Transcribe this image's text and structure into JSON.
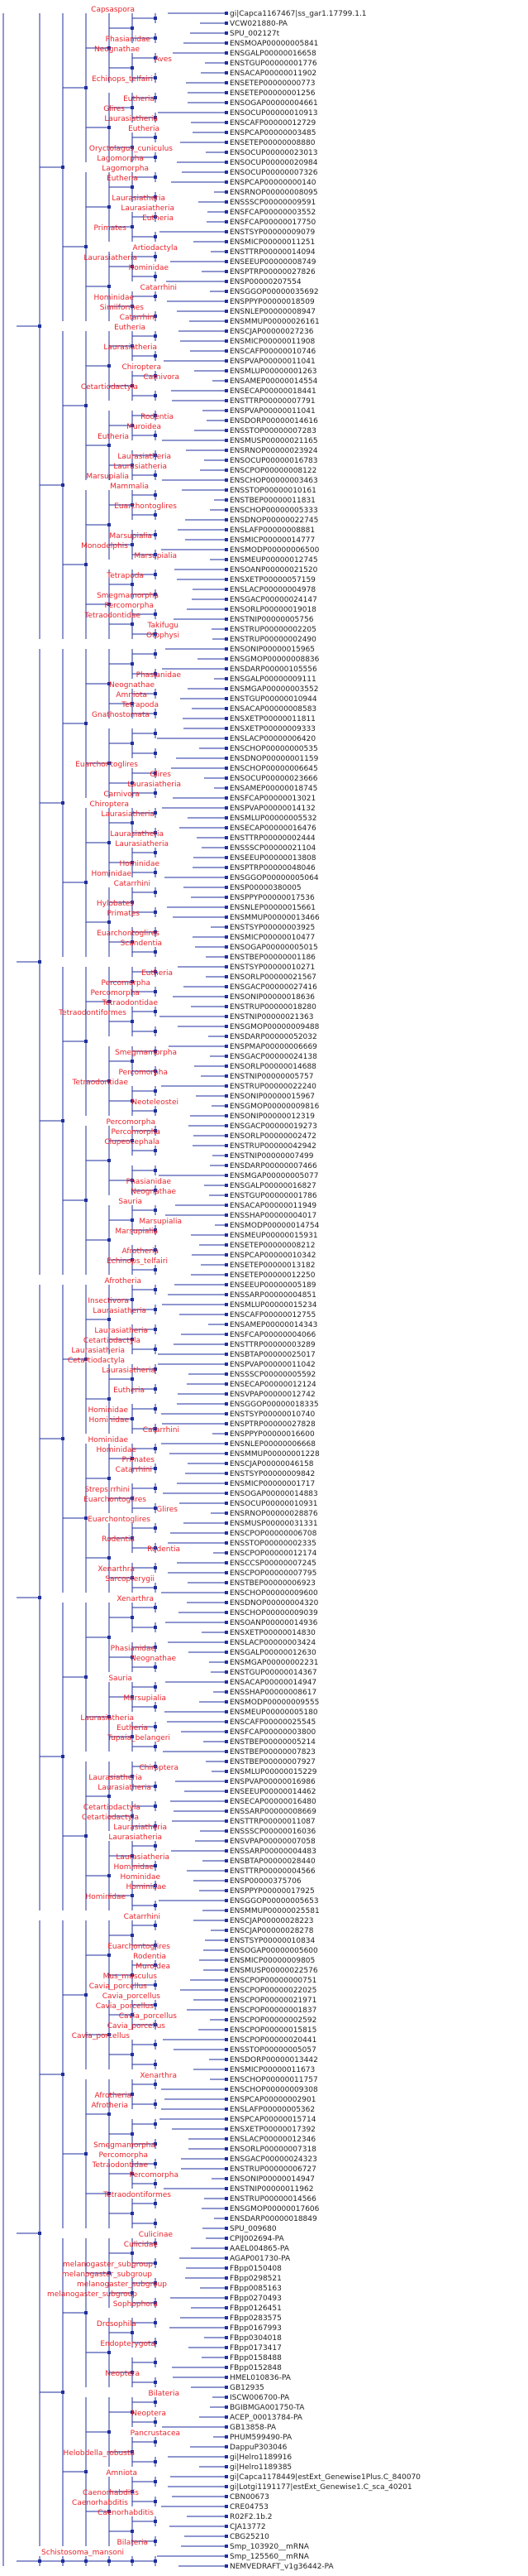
{
  "colors": {
    "branch": "#1f2f9f",
    "clade": "#e8232a",
    "leaf": "#222222"
  },
  "leaves": [
    {
      "label": "gi|Capca1167467|ss_gar1.17799.1.1",
      "clade": "Capsaspora"
    },
    {
      "label": "VCW021880-PA",
      "clade": ""
    },
    {
      "label": "SPU_002127t",
      "clade": ""
    },
    {
      "label": "ENSMOAP00000005841",
      "clade": "Phasianidae"
    },
    {
      "label": "ENSGALP00000016658",
      "clade": "Neognathae"
    },
    {
      "label": "ENSTGUP00000001776",
      "clade": "Aves"
    },
    {
      "label": "ENSACAP00000011902",
      "clade": ""
    },
    {
      "label": "ENSETEP00000000773",
      "clade": "Echinops_telfairi"
    },
    {
      "label": "ENSETEP00000001256",
      "clade": ""
    },
    {
      "label": "ENSOGAP00000004661",
      "clade": "Eutheria"
    },
    {
      "label": "ENSOCUP00000010913",
      "clade": "Glires"
    },
    {
      "label": "ENSCAFP00000012729",
      "clade": "Laurasiatheria"
    },
    {
      "label": "ENSPCAP00000003485",
      "clade": "Eutheria"
    },
    {
      "label": "ENSETEP00000008880",
      "clade": ""
    },
    {
      "label": "ENSOCUP00000023013",
      "clade": "Oryctolagus_cuniculus"
    },
    {
      "label": "ENSOCUP00000020984",
      "clade": "Lagomorpha"
    },
    {
      "label": "ENSOCUP00000007326",
      "clade": "Lagomorpha"
    },
    {
      "label": "ENSPCAP00000000140",
      "clade": "Eutheria"
    },
    {
      "label": "ENSRNOP00000008095",
      "clade": ""
    },
    {
      "label": "ENSSSCP00000009591",
      "clade": "Laurasiatheria"
    },
    {
      "label": "ENSFCAP00000003552",
      "clade": "Laurasiatheria"
    },
    {
      "label": "ENSFCAP00000017750",
      "clade": "Eutheria"
    },
    {
      "label": "ENSTSYP00000009079",
      "clade": "Primates"
    },
    {
      "label": "ENSMICP00000011251",
      "clade": ""
    },
    {
      "label": "ENSTTRP00000014094",
      "clade": "Artiodactyla"
    },
    {
      "label": "ENSEEUP00000008749",
      "clade": "Laurasiatheria"
    },
    {
      "label": "ENSPTRP00000027826",
      "clade": "Hominidae"
    },
    {
      "label": "ENSP00000207554",
      "clade": ""
    },
    {
      "label": "ENSGGOP00000035692",
      "clade": "Catarrhini"
    },
    {
      "label": "ENSPPYP00000018509",
      "clade": "Hominidae"
    },
    {
      "label": "ENSNLEP00000008947",
      "clade": "Simiiformes"
    },
    {
      "label": "ENSMMUP00000026161",
      "clade": "Catarrhini"
    },
    {
      "label": "ENSCJAP00000027236",
      "clade": "Eutheria"
    },
    {
      "label": "ENSMICP00000011908",
      "clade": ""
    },
    {
      "label": "ENSCAFP00000010746",
      "clade": "Laurasiatheria"
    },
    {
      "label": "ENSPVAP00000011041",
      "clade": ""
    },
    {
      "label": "ENSMLUP00000001263",
      "clade": "Chiroptera"
    },
    {
      "label": "ENSAMEP00000014554",
      "clade": "Carnivora"
    },
    {
      "label": "ENSECAP00000018441",
      "clade": "Cetartiodactyla"
    },
    {
      "label": "ENSTTRP00000007791",
      "clade": ""
    },
    {
      "label": "ENSPVAP00000011041",
      "clade": ""
    },
    {
      "label": "ENSDORP00000014616",
      "clade": "Rodentia"
    },
    {
      "label": "ENSSTOP00000007283",
      "clade": "Muroidea"
    },
    {
      "label": "ENSMUSP00000021165",
      "clade": "Eutheria"
    },
    {
      "label": "ENSRNOP00000023924",
      "clade": ""
    },
    {
      "label": "ENSOCUP00000016783",
      "clade": "Laurasiatheria"
    },
    {
      "label": "ENSCPOP00000008122",
      "clade": "Laurasiatheria"
    },
    {
      "label": "ENSCHOP00000003463",
      "clade": "Marsupialia"
    },
    {
      "label": "ENSSTOP00000010161",
      "clade": "Mammalia"
    },
    {
      "label": "ENSTBEP00000011831",
      "clade": ""
    },
    {
      "label": "ENSCHOP00000005333",
      "clade": "Euarchontoglires"
    },
    {
      "label": "ENSDNOP00000022745",
      "clade": ""
    },
    {
      "label": "ENSLAFP00000008881",
      "clade": ""
    },
    {
      "label": "ENSMICP00000014777",
      "clade": "Marsupialia"
    },
    {
      "label": "ENSMODP00000006500",
      "clade": "Monodelphis"
    },
    {
      "label": "ENSMEUP00000012745",
      "clade": "Marsupialia"
    },
    {
      "label": "ENSOANP00000021520",
      "clade": ""
    },
    {
      "label": "ENSXETP00000057159",
      "clade": "Tetrapoda"
    },
    {
      "label": "ENSLACP00000004978",
      "clade": ""
    },
    {
      "label": "ENSGACP00000024147",
      "clade": "Smegmamorpha"
    },
    {
      "label": "ENSORLP00000019018",
      "clade": "Percomorpha"
    },
    {
      "label": "ENSTNIP00000005756",
      "clade": "Tetraodontidae"
    },
    {
      "label": "ENSTRUP00000002205",
      "clade": "Takifugu"
    },
    {
      "label": "ENSTRUP00000002490",
      "clade": "Otophysi"
    },
    {
      "label": "ENSONIP00000015965",
      "clade": ""
    },
    {
      "label": "ENSGMOP00000008836",
      "clade": ""
    },
    {
      "label": "ENSDARP00000105556",
      "clade": ""
    },
    {
      "label": "ENSGALP00000009111",
      "clade": "Phasianidae"
    },
    {
      "label": "ENSMGAP00000003552",
      "clade": "Neognathae"
    },
    {
      "label": "ENSTGUP00000010944",
      "clade": "Amniota"
    },
    {
      "label": "ENSACAP00000008583",
      "clade": "Tetrapoda"
    },
    {
      "label": "ENSXETP00000011811",
      "clade": "Gnathostomata"
    },
    {
      "label": "ENSXETP00000009333",
      "clade": ""
    },
    {
      "label": "ENSLACP00000006420",
      "clade": ""
    },
    {
      "label": "ENSCHOP00000000535",
      "clade": ""
    },
    {
      "label": "ENSDNOP00000001159",
      "clade": ""
    },
    {
      "label": "ENSCHOP00000006645",
      "clade": "Euarchontoglires"
    },
    {
      "label": "ENSOCUP00000023666",
      "clade": "Glires"
    },
    {
      "label": "ENSAMEP00000018745",
      "clade": "Laurasiatheria"
    },
    {
      "label": "ENSFCAP00000013021",
      "clade": "Carnivora"
    },
    {
      "label": "ENSPVAP00000014132",
      "clade": "Chiroptera"
    },
    {
      "label": "ENSMLUP00000005532",
      "clade": "Laurasiatheria"
    },
    {
      "label": "ENSECAP00000016476",
      "clade": ""
    },
    {
      "label": "ENSTTRP00000002444",
      "clade": "Laurasiatheria"
    },
    {
      "label": "ENSSSCP00000021104",
      "clade": "Laurasiatheria"
    },
    {
      "label": "ENSEEUP00000013808",
      "clade": ""
    },
    {
      "label": "ENSPTRP00000048046",
      "clade": "Hominidae"
    },
    {
      "label": "ENSGGOP00000005064",
      "clade": "Hominidae"
    },
    {
      "label": "ENSP00000380005",
      "clade": "Catarrhini"
    },
    {
      "label": "ENSPPYP00000017536",
      "clade": ""
    },
    {
      "label": "ENSNLEP00000015661",
      "clade": "Hylobates"
    },
    {
      "label": "ENSMMUP00000013466",
      "clade": "Primates"
    },
    {
      "label": "ENSTSYP00000003925",
      "clade": ""
    },
    {
      "label": "ENSMICP00000010477",
      "clade": "Euarchontoglires"
    },
    {
      "label": "ENSOGAP00000005015",
      "clade": "Scandentia"
    },
    {
      "label": "ENSTBEP00000001186",
      "clade": ""
    },
    {
      "label": "ENSTSYP00000010271",
      "clade": ""
    },
    {
      "label": "ENSORLP00000021567",
      "clade": "Eutheria"
    },
    {
      "label": "ENSGACP00000027416",
      "clade": "Percomorpha"
    },
    {
      "label": "ENSONIP00000018636",
      "clade": "Percomorpha"
    },
    {
      "label": "ENSTRUP00000018280",
      "clade": "Tetraodontidae"
    },
    {
      "label": "ENSTNIP00000021363",
      "clade": "Tetraodontiformes"
    },
    {
      "label": "ENSGMOP00000009488",
      "clade": ""
    },
    {
      "label": "ENSDARP00000052032",
      "clade": ""
    },
    {
      "label": "ENSPMAP00000006669",
      "clade": ""
    },
    {
      "label": "ENSGACP00000024138",
      "clade": "Smegmamorpha"
    },
    {
      "label": "ENSORLP00000014688",
      "clade": ""
    },
    {
      "label": "ENSTNIP00000005757",
      "clade": "Percomorpha"
    },
    {
      "label": "ENSTRUP00000022240",
      "clade": "Tetraodontidae"
    },
    {
      "label": "ENSONIP00000015967",
      "clade": ""
    },
    {
      "label": "ENSGMOP00000009816",
      "clade": "Neoteleostei"
    },
    {
      "label": "ENSONIP00000012319",
      "clade": ""
    },
    {
      "label": "ENSGACP00000019273",
      "clade": "Percomorpha"
    },
    {
      "label": "ENSORLP00000002472",
      "clade": "Percomorpha"
    },
    {
      "label": "ENSTRUP00000042942",
      "clade": "Clupeocephala"
    },
    {
      "label": "ENSTNIP00000007499",
      "clade": ""
    },
    {
      "label": "ENSDARP00000007466",
      "clade": ""
    },
    {
      "label": "ENSMGAP00000005077",
      "clade": ""
    },
    {
      "label": "ENSGALP00000016827",
      "clade": "Phasianidae"
    },
    {
      "label": "ENSTGUP00000001786",
      "clade": "Neognathae"
    },
    {
      "label": "ENSACAP00000011949",
      "clade": "Sauria"
    },
    {
      "label": "ENSSHAP00000004017",
      "clade": ""
    },
    {
      "label": "ENSMODP00000014754",
      "clade": "Marsupialia"
    },
    {
      "label": "ENSMEUP00000015931",
      "clade": "Marsupialia"
    },
    {
      "label": "ENSETEP00000008212",
      "clade": ""
    },
    {
      "label": "ENSPCAP00000010342",
      "clade": "Afrotheria"
    },
    {
      "label": "ENSETEP00000013182",
      "clade": "Echinops_telfairi"
    },
    {
      "label": "ENSETEP00000012250",
      "clade": ""
    },
    {
      "label": "ENSEEUP00000005189",
      "clade": "Afrotheria"
    },
    {
      "label": "ENSSARP00000004851",
      "clade": ""
    },
    {
      "label": "ENSMLUP00000015234",
      "clade": "Insectivora"
    },
    {
      "label": "ENSCAFP00000012755",
      "clade": "Laurasiatheria"
    },
    {
      "label": "ENSAMEP00000014343",
      "clade": ""
    },
    {
      "label": "ENSFCAP00000004066",
      "clade": "Laurasiatheria"
    },
    {
      "label": "ENSTTRP00000003289",
      "clade": "Cetartiodactyla"
    },
    {
      "label": "ENSBTAP00000025017",
      "clade": "Laurasiatheria"
    },
    {
      "label": "ENSPVAP00000011042",
      "clade": "Cetartiodactyla"
    },
    {
      "label": "ENSSSCP00000005592",
      "clade": "Laurasiatheria"
    },
    {
      "label": "ENSECAP00000012124",
      "clade": ""
    },
    {
      "label": "ENSVPAP00000012742",
      "clade": "Eutheria"
    },
    {
      "label": "ENSGGOP00000018335",
      "clade": ""
    },
    {
      "label": "ENSTSYP00000010740",
      "clade": "Hominidae"
    },
    {
      "label": "ENSPTRP00000027828",
      "clade": "Hominidae"
    },
    {
      "label": "ENSPPYP00000016600",
      "clade": "Catarrhini"
    },
    {
      "label": "ENSNLEP00000006668",
      "clade": "Hominidae"
    },
    {
      "label": "ENSMMUP00000001228",
      "clade": "Hominidae"
    },
    {
      "label": "ENSCJAP00000046158",
      "clade": "Primates"
    },
    {
      "label": "ENSTSYP00000009842",
      "clade": "Catarrhini"
    },
    {
      "label": "ENSMICP00000001717",
      "clade": ""
    },
    {
      "label": "ENSOGAP00000014883",
      "clade": "Strepsirrhini"
    },
    {
      "label": "ENSOCUP00000010931",
      "clade": "Euarchontoglires"
    },
    {
      "label": "ENSRNOP00000028876",
      "clade": "Glires"
    },
    {
      "label": "ENSMUSP00000031331",
      "clade": "Euarchontoglires"
    },
    {
      "label": "ENSCPOP00000006708",
      "clade": ""
    },
    {
      "label": "ENSSTOP00000002335",
      "clade": "Rodentia"
    },
    {
      "label": "ENSCPOP00000012174",
      "clade": "Rodentia"
    },
    {
      "label": "ENSCCSP00000007245",
      "clade": ""
    },
    {
      "label": "ENSCPOP00000007795",
      "clade": "Xenarthra"
    },
    {
      "label": "ENSTBEP00000006923",
      "clade": "Sarcopterygii"
    },
    {
      "label": "ENSCHOP00000009600",
      "clade": ""
    },
    {
      "label": "ENSDNOP00000004320",
      "clade": "Xenarthra"
    },
    {
      "label": "ENSCHOP00000009039",
      "clade": ""
    },
    {
      "label": "ENSOANP00000014936",
      "clade": ""
    },
    {
      "label": "ENSXETP00000014830",
      "clade": ""
    },
    {
      "label": "ENSLACP00000003424",
      "clade": ""
    },
    {
      "label": "ENSGALP00000012630",
      "clade": "Phasianidae"
    },
    {
      "label": "ENSMGAP00000002231",
      "clade": "Neognathae"
    },
    {
      "label": "ENSTGUP00000014367",
      "clade": ""
    },
    {
      "label": "ENSACAP00000014947",
      "clade": "Sauria"
    },
    {
      "label": "ENSSHAP00000008617",
      "clade": ""
    },
    {
      "label": "ENSMODP00000009555",
      "clade": "Marsupialia"
    },
    {
      "label": "ENSMEUP00000005180",
      "clade": ""
    },
    {
      "label": "ENSCAFP00000025545",
      "clade": "Laurasiatheria"
    },
    {
      "label": "ENSFCAP00000003800",
      "clade": "Eutheria"
    },
    {
      "label": "ENSTBEP00000005214",
      "clade": "Tupaia_belangeri"
    },
    {
      "label": "ENSTBEP00000007823",
      "clade": ""
    },
    {
      "label": "ENSTBEP00000007927",
      "clade": ""
    },
    {
      "label": "ENSMLUP00000015229",
      "clade": "Chiroptera"
    },
    {
      "label": "ENSPVAP00000016986",
      "clade": "Laurasiatheria"
    },
    {
      "label": "ENSEEUP00000014462",
      "clade": "Laurasiatheria"
    },
    {
      "label": "ENSECAP00000016480",
      "clade": ""
    },
    {
      "label": "ENSSARP00000008669",
      "clade": "Cetartiodactyla"
    },
    {
      "label": "ENSTTRP00000011087",
      "clade": "Cetartiodactyla"
    },
    {
      "label": "ENSSSCP00000016036",
      "clade": "Laurasiatheria"
    },
    {
      "label": "ENSVPAP00000007058",
      "clade": "Laurasiatheria"
    },
    {
      "label": "ENSSARP00000004483",
      "clade": ""
    },
    {
      "label": "ENSBTAP00000028440",
      "clade": "Laurasiatheria"
    },
    {
      "label": "ENSTTRP00000004566",
      "clade": "Hominidae"
    },
    {
      "label": "ENSP00000375706",
      "clade": "Hominidae"
    },
    {
      "label": "ENSPPYP00000017925",
      "clade": "Hominidae"
    },
    {
      "label": "ENSGGOP00000005653",
      "clade": "Hominidae"
    },
    {
      "label": "ENSMMUP00000025581",
      "clade": ""
    },
    {
      "label": "ENSCJAP00000028223",
      "clade": "Catarrhini"
    },
    {
      "label": "ENSCJAP00000028278",
      "clade": ""
    },
    {
      "label": "ENSTSYP00000010834",
      "clade": ""
    },
    {
      "label": "ENSOGAP00000005600",
      "clade": "Euarchontoglires"
    },
    {
      "label": "ENSMICP00000009805",
      "clade": "Rodentia"
    },
    {
      "label": "ENSMUSP00000022576",
      "clade": "Muroidea"
    },
    {
      "label": "ENSCPOP00000000751",
      "clade": "Mus_musculus"
    },
    {
      "label": "ENSCPOP00000022025",
      "clade": "Cavia_porcellus"
    },
    {
      "label": "ENSCPOP00000021971",
      "clade": "Cavia_porcellus"
    },
    {
      "label": "ENSCPOP00000001837",
      "clade": "Cavia_porcellus"
    },
    {
      "label": "ENSCPOP00000002592",
      "clade": "Cavia_porcellus"
    },
    {
      "label": "ENSCPOP00000015815",
      "clade": "Cavia_porcellus"
    },
    {
      "label": "ENSCPOP00000020441",
      "clade": "Cavia_porcellus"
    },
    {
      "label": "ENSSTOP00000005057",
      "clade": ""
    },
    {
      "label": "ENSDORP00000013442",
      "clade": ""
    },
    {
      "label": "ENSMICP00000011673",
      "clade": ""
    },
    {
      "label": "ENSCHOP00000011757",
      "clade": "Xenarthra"
    },
    {
      "label": "ENSCHOP00000009308",
      "clade": ""
    },
    {
      "label": "ENSPCAP00000002901",
      "clade": "Afrotheria"
    },
    {
      "label": "ENSLAFP00000005362",
      "clade": "Afrotheria"
    },
    {
      "label": "ENSPCAP00000015714",
      "clade": ""
    },
    {
      "label": "ENSXETP00000017392",
      "clade": ""
    },
    {
      "label": "ENSLACP00000012346",
      "clade": ""
    },
    {
      "label": "ENSORLP00000007318",
      "clade": "Smegmamorpha"
    },
    {
      "label": "ENSGACP00000024323",
      "clade": "Percomorpha"
    },
    {
      "label": "ENSTRUP00000006727",
      "clade": "Tetraodontidae"
    },
    {
      "label": "ENSONIP00000014947",
      "clade": "Percomorpha"
    },
    {
      "label": "ENSTNIP00000011962",
      "clade": ""
    },
    {
      "label": "ENSTRUP00000014566",
      "clade": "Tetraodontiformes"
    },
    {
      "label": "ENSGMOP00000017606",
      "clade": ""
    },
    {
      "label": "ENSDARP00000018849",
      "clade": ""
    },
    {
      "label": "SPU_009680",
      "clade": ""
    },
    {
      "label": "CPIJ002694-PA",
      "clade": "Culicinae"
    },
    {
      "label": "AAEL004865-PA",
      "clade": "Culicidae"
    },
    {
      "label": "AGAP001730-PA",
      "clade": ""
    },
    {
      "label": "FBpp0150408",
      "clade": "melanogaster_subgroup"
    },
    {
      "label": "FBpp0298521",
      "clade": "melanogaster_subgroup"
    },
    {
      "label": "FBpp0085163",
      "clade": "melanogaster_subgroup"
    },
    {
      "label": "FBpp0270493",
      "clade": "melanogaster_subgroup"
    },
    {
      "label": "FBpp0126451",
      "clade": "Sophophora"
    },
    {
      "label": "FBpp0283575",
      "clade": ""
    },
    {
      "label": "FBpp0167993",
      "clade": "Drosophila"
    },
    {
      "label": "FBpp0304018",
      "clade": ""
    },
    {
      "label": "FBpp0173417",
      "clade": "Endopterygota"
    },
    {
      "label": "FBpp0158488",
      "clade": ""
    },
    {
      "label": "FBpp0152848",
      "clade": ""
    },
    {
      "label": "HMEL010836-PA",
      "clade": "Neoptera"
    },
    {
      "label": "GB12935",
      "clade": ""
    },
    {
      "label": "ISCW006700-PA",
      "clade": "Bilateria"
    },
    {
      "label": "BGIBMGA001750-TA",
      "clade": ""
    },
    {
      "label": "ACEP_00013784-PA",
      "clade": "Neoptera"
    },
    {
      "label": "GB13858-PA",
      "clade": ""
    },
    {
      "label": "PHUM599490-PA",
      "clade": "Pancrustacea"
    },
    {
      "label": "DappuP303046",
      "clade": ""
    },
    {
      "label": "gi|Helro1189916",
      "clade": "Helobdella_robusta"
    },
    {
      "label": "gi|Helro1189385",
      "clade": ""
    },
    {
      "label": "gi|Capca1178449|estExt_Genewise1Plus.C_840070",
      "clade": "Amniota"
    },
    {
      "label": "gi|Lotgi1191177|estExt_Genewise1.C_sca_40201",
      "clade": ""
    },
    {
      "label": "CBN00673",
      "clade": "Caenorhabditis"
    },
    {
      "label": "CRE04753",
      "clade": "Caenorhabditis"
    },
    {
      "label": "R02F2.1b.2",
      "clade": "Caenorhabditis"
    },
    {
      "label": "CJA13772",
      "clade": ""
    },
    {
      "label": "CBG25210",
      "clade": ""
    },
    {
      "label": "Smp_103920__mRNA",
      "clade": "Bilateria"
    },
    {
      "label": "Smp_125560__mRNA",
      "clade": "Schistosoma_mansoni"
    },
    {
      "label": "NEMVEDRAFT_v1g36442-PA",
      "clade": ""
    }
  ]
}
